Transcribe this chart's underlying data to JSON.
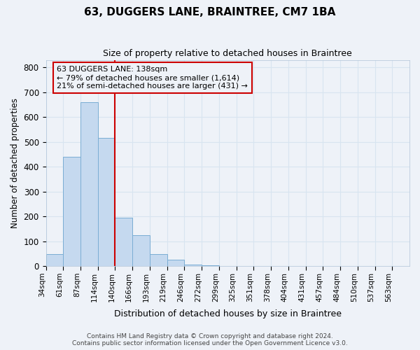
{
  "title": "63, DUGGERS LANE, BRAINTREE, CM7 1BA",
  "subtitle": "Size of property relative to detached houses in Braintree",
  "xlabel": "Distribution of detached houses by size in Braintree",
  "ylabel": "Number of detached properties",
  "bar_labels": [
    "34sqm",
    "61sqm",
    "87sqm",
    "114sqm",
    "140sqm",
    "166sqm",
    "193sqm",
    "219sqm",
    "246sqm",
    "272sqm",
    "299sqm",
    "325sqm",
    "351sqm",
    "378sqm",
    "404sqm",
    "431sqm",
    "457sqm",
    "484sqm",
    "510sqm",
    "537sqm",
    "563sqm"
  ],
  "bar_heights": [
    50,
    440,
    660,
    515,
    195,
    125,
    50,
    27,
    8,
    5,
    2,
    1,
    0,
    0,
    0,
    0,
    0,
    0,
    0,
    0,
    0
  ],
  "bar_color": "#c5d9ef",
  "bar_edge_color": "#7aadd4",
  "property_line_color": "#cc0000",
  "property_line_label_idx": 4,
  "annotation_text": "63 DUGGERS LANE: 138sqm\n← 79% of detached houses are smaller (1,614)\n21% of semi-detached houses are larger (431) →",
  "annotation_box_color": "#cc0000",
  "ylim": [
    0,
    830
  ],
  "yticks": [
    0,
    100,
    200,
    300,
    400,
    500,
    600,
    700,
    800
  ],
  "background_color": "#eef2f8",
  "grid_color": "#d8e4f0",
  "footnote": "Contains HM Land Registry data © Crown copyright and database right 2024.\nContains public sector information licensed under the Open Government Licence v3.0."
}
